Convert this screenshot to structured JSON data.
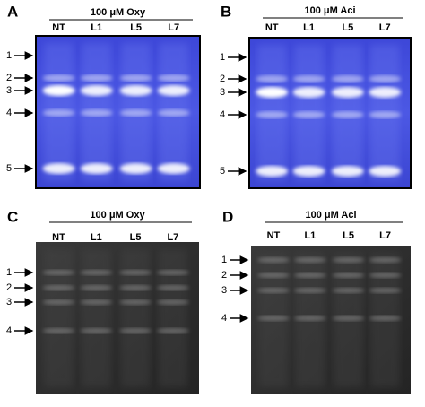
{
  "panels": [
    {
      "letter": "A",
      "title": "100 μM Oxy",
      "lanes": [
        "NT",
        "L1",
        "L5",
        "L7"
      ],
      "markers": [
        "1",
        "2",
        "3",
        "4",
        "5"
      ]
    },
    {
      "letter": "B",
      "title": "100 μM Aci",
      "lanes": [
        "NT",
        "L1",
        "L5",
        "L7"
      ],
      "markers": [
        "1",
        "2",
        "3",
        "4",
        "5"
      ]
    },
    {
      "letter": "C",
      "title": "100 μM Oxy",
      "lanes": [
        "NT",
        "L1",
        "L5",
        "L7"
      ],
      "markers": [
        "1",
        "2",
        "3",
        "4"
      ]
    },
    {
      "letter": "D",
      "title": "100 μM Aci",
      "lanes": [
        "NT",
        "L1",
        "L5",
        "L7"
      ],
      "markers": [
        "1",
        "2",
        "3",
        "4"
      ]
    }
  ]
}
